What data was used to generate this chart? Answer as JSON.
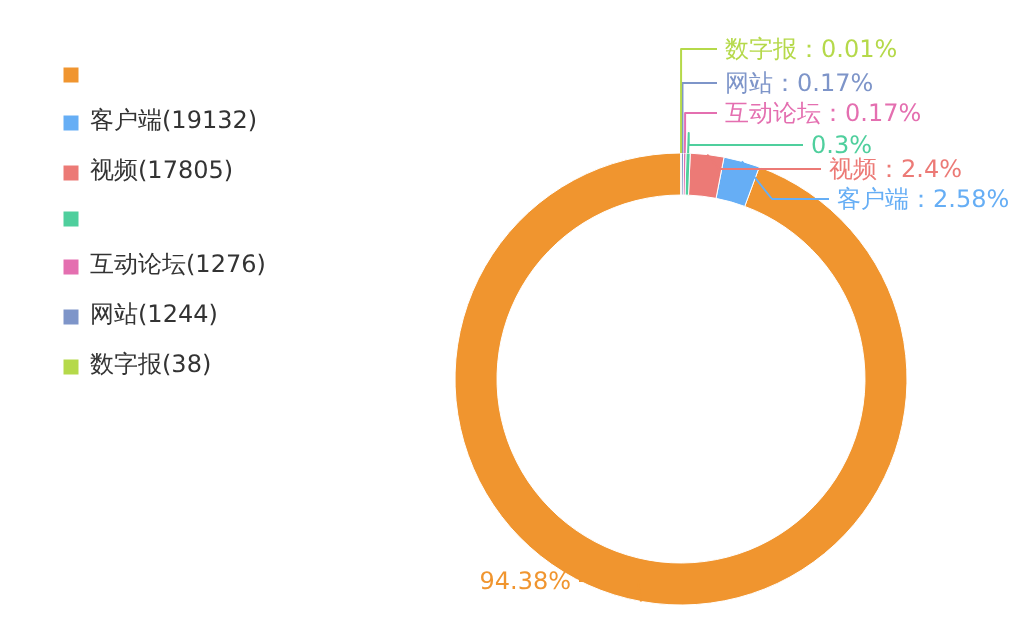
{
  "chart_data": {
    "type": "donut",
    "categories": [
      null,
      "客户端(19132)",
      "视频(17805)",
      null,
      "互动论坛(1276)",
      "网站(1244)",
      "数字报(38)"
    ],
    "values": [
      94.38,
      2.58,
      2.4,
      0.3,
      0.17,
      0.17,
      0.01
    ],
    "colors": [
      "#f0952f",
      "#66aef5",
      "#ec7a76",
      "#4fcf9d",
      "#e46fb0",
      "#7e95c9",
      "#b5d94a"
    ],
    "value_labels": [
      "94.38%",
      "客户端：2.58%",
      "视频：2.4%",
      "0.3%",
      "互动论坛：0.17%",
      "网站：0.17%",
      "数字报：0.01%"
    ],
    "legend": "top left"
  }
}
